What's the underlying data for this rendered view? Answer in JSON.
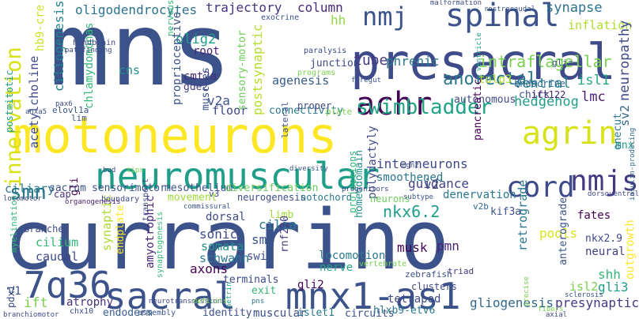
{
  "words": [
    {
      "text": "mns",
      "color": "#3b528b"
    },
    {
      "text": "currarino",
      "color": "#3b528b"
    },
    {
      "text": "motoneurons",
      "color": "#fde725"
    },
    {
      "text": "presacral",
      "color": "#3e4a89"
    },
    {
      "text": "neuromuscular",
      "color": "#1f9e89"
    },
    {
      "text": "sacral",
      "color": "#3b528b"
    },
    {
      "text": "mnx1-as1",
      "color": "#3b528b"
    },
    {
      "text": "7q36",
      "color": "#3b528b"
    },
    {
      "text": "spinal",
      "color": "#3b528b"
    },
    {
      "text": "agrin",
      "color": "#d8e219"
    },
    {
      "text": "achr",
      "color": "#440154"
    },
    {
      "text": "swimbladder",
      "color": "#20a386"
    },
    {
      "text": "innervation",
      "color": "#d8e219"
    },
    {
      "text": "cord",
      "color": "#3e4a89"
    },
    {
      "text": "nmjs",
      "color": "#443983"
    },
    {
      "text": "nmj",
      "color": "#3b528b"
    },
    {
      "text": "smn",
      "color": "#2a788e"
    },
    {
      "text": "anorectal",
      "color": "#2a788e"
    },
    {
      "text": "intraflagellar",
      "color": "#7ad151"
    },
    {
      "text": "synapse",
      "color": "#2c728e"
    },
    {
      "text": "inflation",
      "color": "#addc30"
    },
    {
      "text": "neuropathy",
      "color": "#3e4a89"
    },
    {
      "text": "hedgehog",
      "color": "#1f9e89"
    },
    {
      "text": "isl1",
      "color": "#22a884"
    },
    {
      "text": "lmc",
      "color": "#481f70"
    },
    {
      "text": "sv2",
      "color": "#31688e"
    },
    {
      "text": "tube",
      "color": "#443983"
    },
    {
      "text": "phrenic",
      "color": "#2a788e"
    },
    {
      "text": "tulp3",
      "color": "#b5de2b"
    },
    {
      "text": "ventral",
      "color": "#287d8e"
    },
    {
      "text": "oligodendrocytes",
      "color": "#2c728e"
    },
    {
      "text": "trajectory",
      "color": "#46327e"
    },
    {
      "text": "column",
      "color": "#482878"
    },
    {
      "text": "hh",
      "color": "#90d743"
    },
    {
      "text": "ciliogenesis",
      "color": "#26828e"
    },
    {
      "text": "hb9-cre",
      "color": "#cde11d"
    },
    {
      "text": "acetylcholine",
      "color": "#3e4a89"
    },
    {
      "text": "chlamydomonas",
      "color": "#35b779"
    },
    {
      "text": "cns",
      "color": "#21918c"
    },
    {
      "text": "olig2",
      "color": "#1f9e89"
    },
    {
      "text": "proprioceptive",
      "color": "#3b528b"
    },
    {
      "text": "postsynaptic",
      "color": "#b5de2b"
    },
    {
      "text": "agenesis",
      "color": "#365c8d"
    },
    {
      "text": "cmt2a",
      "color": "#472d7b"
    },
    {
      "text": "gde2",
      "color": "#424086"
    },
    {
      "text": "v2a",
      "color": "#3b528b"
    },
    {
      "text": "root",
      "color": "#482475"
    },
    {
      "text": "floor",
      "color": "#3e4a89"
    },
    {
      "text": "sensory-motor",
      "color": "#6ccd5a"
    },
    {
      "text": "muscles",
      "color": "#3b528b"
    },
    {
      "text": "cilia",
      "color": "#2a788e"
    },
    {
      "text": "sma",
      "color": "#3b528b"
    },
    {
      "text": "sonic",
      "color": "#3e4a89"
    },
    {
      "text": "somata",
      "color": "#21918c"
    },
    {
      "text": "schwann",
      "color": "#2a788e"
    },
    {
      "text": "axons",
      "color": "#440154"
    },
    {
      "text": "swim",
      "color": "#3b528b"
    },
    {
      "text": "musk",
      "color": "#440154"
    },
    {
      "text": "nkx6.2",
      "color": "#1f9e89"
    },
    {
      "text": "pmn",
      "color": "#482475"
    },
    {
      "text": "locomotion",
      "color": "#2a788e"
    },
    {
      "text": "homeodomain",
      "color": "#21918c"
    },
    {
      "text": "interneurons",
      "color": "#3e4a89"
    },
    {
      "text": "guidance",
      "color": "#414487"
    },
    {
      "text": "smoothened",
      "color": "#2a788e"
    },
    {
      "text": "denervation",
      "color": "#2a788e"
    },
    {
      "text": "ciliary",
      "color": "#2a788e"
    },
    {
      "text": "cilium",
      "color": "#35b779"
    },
    {
      "text": "caudal",
      "color": "#3e4a89"
    },
    {
      "text": "synaptic",
      "color": "#addc30"
    },
    {
      "text": "endplate",
      "color": "#fde725"
    },
    {
      "text": "amyotrophic",
      "color": "#482878"
    },
    {
      "text": "dorsal",
      "color": "#3e4a89"
    },
    {
      "text": "limb",
      "color": "#9fda3a"
    },
    {
      "text": "sacrum",
      "color": "#3b528b"
    },
    {
      "text": "sensorimotor",
      "color": "#3b528b"
    },
    {
      "text": "mesothelium",
      "color": "#3b528b"
    },
    {
      "text": "diversification",
      "color": "#6ccd5a"
    },
    {
      "text": "cap",
      "color": "#46327e"
    },
    {
      "text": "gli",
      "color": "#440154"
    },
    {
      "text": "v3",
      "color": "#3e4a89"
    },
    {
      "text": "polydactyly",
      "color": "#3e4a89"
    },
    {
      "text": "v2",
      "color": "#3e4a89"
    },
    {
      "text": "v2b",
      "color": "#31688e"
    },
    {
      "text": "chick",
      "color": "#3b528b"
    },
    {
      "text": "ift122",
      "color": "#481f70"
    },
    {
      "text": "mnx",
      "color": "#1f9e89"
    },
    {
      "text": "onecut",
      "color": "#2a788e"
    },
    {
      "text": "fates",
      "color": "#440154"
    },
    {
      "text": "pools",
      "color": "#d8e219"
    },
    {
      "text": "nkx2.9",
      "color": "#3e4a89"
    },
    {
      "text": "anterograde",
      "color": "#3b528b"
    },
    {
      "text": "neural",
      "color": "#424086"
    },
    {
      "text": "retrograde",
      "color": "#2a788e"
    },
    {
      "text": "kif3a",
      "color": "#3b528b"
    },
    {
      "text": "shh",
      "color": "#35b779"
    },
    {
      "text": "gli3",
      "color": "#1f9e89"
    },
    {
      "text": "isl2",
      "color": "#7ad151"
    },
    {
      "text": "presynaptic",
      "color": "#443983"
    },
    {
      "text": "outgrowth",
      "color": "#fde725"
    },
    {
      "text": "gliogenesis",
      "color": "#31688e"
    },
    {
      "text": "tetrapod",
      "color": "#3e4a89"
    },
    {
      "text": "nerve",
      "color": "#20a386"
    },
    {
      "text": "gli2",
      "color": "#440154"
    },
    {
      "text": "circuits",
      "color": "#3b528b"
    },
    {
      "text": "hlxb9-etv6",
      "color": "#2a788e"
    },
    {
      "text": "rnf220",
      "color": "#443983"
    },
    {
      "text": "muscular",
      "color": "#3b528b"
    },
    {
      "text": "identity",
      "color": "#3b528b"
    },
    {
      "text": "islet1",
      "color": "#2a788e"
    },
    {
      "text": "endoderm",
      "color": "#365c8d"
    },
    {
      "text": "atrophy",
      "color": "#46327e"
    },
    {
      "text": "ift",
      "color": "#7ad151"
    },
    {
      "text": "v1",
      "color": "#3b528b"
    },
    {
      "text": "pdx1",
      "color": "#3e4a89"
    },
    {
      "text": "myelination",
      "color": "#35b779"
    },
    {
      "text": "branches",
      "color": "#3e4a89"
    },
    {
      "text": "movement",
      "color": "#9fda3a"
    },
    {
      "text": "neurogenesis",
      "color": "#3e4a89"
    },
    {
      "text": "notochord",
      "color": "#2a788e"
    },
    {
      "text": "terminals",
      "color": "#3e4a89"
    },
    {
      "text": "exit",
      "color": "#35b779"
    },
    {
      "text": "elovl1a",
      "color": "#3b528b"
    },
    {
      "text": "lim",
      "color": "#3b528b"
    },
    {
      "text": "postmitotic",
      "color": "#1f9e89"
    },
    {
      "text": "connectivity",
      "color": "#2a788e"
    },
    {
      "text": "lateral",
      "color": "#3b528b"
    },
    {
      "text": "plate",
      "color": "#7ad151"
    },
    {
      "text": "autonomous",
      "color": "#3e4a89"
    },
    {
      "text": "pancreatic",
      "color": "#440154"
    },
    {
      "text": "endocrine",
      "color": "#31688e"
    },
    {
      "text": "proper",
      "color": "#3e4a89"
    },
    {
      "text": "junction",
      "color": "#3e4a89"
    },
    {
      "text": "ventricle",
      "color": "#20a386"
    },
    {
      "text": "glia",
      "color": "#3b528b"
    },
    {
      "text": "projections",
      "color": "#35b779"
    },
    {
      "text": "neurons",
      "color": "#6ccd5a"
    },
    {
      "text": "clusters",
      "color": "#3e4a89"
    },
    {
      "text": "triad",
      "color": "#443983"
    },
    {
      "text": "zebrafish",
      "color": "#3b528b"
    },
    {
      "text": "vertebrate",
      "color": "#7ad151"
    },
    {
      "text": "transport",
      "color": "#3e4a89"
    },
    {
      "text": "synaptogenesis",
      "color": "#35b779"
    },
    {
      "text": "boundary",
      "color": "#3e4a89"
    },
    {
      "text": "organogenesis",
      "color": "#481f70"
    },
    {
      "text": "locomotor",
      "color": "#3e4a89"
    },
    {
      "text": "commissural",
      "color": "#3b528b"
    },
    {
      "text": "neurotransmission",
      "color": "#3e4a89"
    },
    {
      "text": "pns",
      "color": "#2a788e"
    },
    {
      "text": "assembly",
      "color": "#3b528b"
    },
    {
      "text": "chx10",
      "color": "#3e4a89"
    },
    {
      "text": "branchiomotor",
      "color": "#3e4a89"
    },
    {
      "text": "netrin",
      "color": "#20a386"
    },
    {
      "text": "deficits",
      "color": "#7ad151"
    },
    {
      "text": "sclerosis",
      "color": "#3b528b"
    },
    {
      "text": "precise",
      "color": "#7ad151"
    },
    {
      "text": "fibers",
      "color": "#7ad151"
    },
    {
      "text": "axial",
      "color": "#3e4a89"
    },
    {
      "text": "insulin-producing",
      "color": "#31688e"
    },
    {
      "text": "hindbrain",
      "color": "#3e4a89"
    },
    {
      "text": "pathfinding",
      "color": "#3e4a89"
    },
    {
      "text": "nervous",
      "color": "#35b779"
    },
    {
      "text": "exocrine",
      "color": "#3b528b"
    },
    {
      "text": "paralysis",
      "color": "#3e4a89"
    },
    {
      "text": "programs",
      "color": "#7ad151"
    },
    {
      "text": "foregut",
      "color": "#3b528b"
    },
    {
      "text": "malformation",
      "color": "#3e4a89"
    },
    {
      "text": "rostrocaudal",
      "color": "#3b528b"
    },
    {
      "text": "dorsoventral",
      "color": "#3e4a89"
    },
    {
      "text": "progenitors",
      "color": "#3e4a89"
    },
    {
      "text": "subtype",
      "color": "#3b528b"
    },
    {
      "text": "ngn2",
      "color": "#3e4a89"
    },
    {
      "text": "diversity",
      "color": "#3b528b"
    },
    {
      "text": "anxa5",
      "color": "#3b528b"
    },
    {
      "text": "pax6",
      "color": "#3e4a89"
    },
    {
      "text": "bud",
      "color": "#3e4a89"
    },
    {
      "text": "tips",
      "color": "#7ad151"
    }
  ]
}
